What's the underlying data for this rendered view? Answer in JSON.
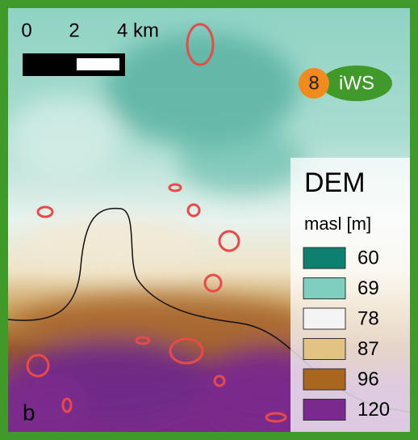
{
  "scale_bar": {
    "labels": [
      "0",
      "2",
      "4 km"
    ]
  },
  "badge": {
    "number": "8",
    "label": "iWS"
  },
  "legend": {
    "title": "DEM",
    "subtitle": "masl [m]",
    "items": [
      {
        "value": 60,
        "color": "#0e8070"
      },
      {
        "value": 69,
        "color": "#7fcfc0"
      },
      {
        "value": 78,
        "color": "#f4f4f4"
      },
      {
        "value": 87,
        "color": "#e2c384"
      },
      {
        "value": 96,
        "color": "#a8661e"
      },
      {
        "value": 120,
        "color": "#7a2a8c"
      }
    ]
  },
  "panel_label": "b"
}
